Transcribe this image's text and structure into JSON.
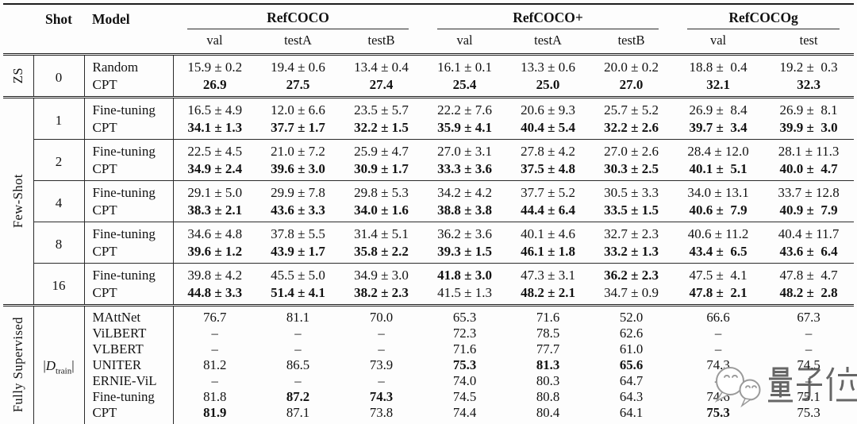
{
  "table": {
    "header": {
      "shot": "Shot",
      "model": "Model"
    },
    "col_groups": [
      {
        "label": "RefCOCO",
        "cols": [
          "val",
          "testA",
          "testB"
        ]
      },
      {
        "label": "RefCOCO+",
        "cols": [
          "val",
          "testA",
          "testB"
        ]
      },
      {
        "label": "RefCOCOg",
        "cols": [
          "val",
          "test"
        ]
      }
    ],
    "sections": [
      {
        "id": "zero-shot",
        "group_label": "ZS",
        "blocks": [
          {
            "shot": {
              "pre": "0"
            },
            "rows": [
              {
                "model": "Random",
                "values": [
                  [
                    "15.9 ± 0.2",
                    0
                  ],
                  [
                    "19.4 ± 0.6",
                    0
                  ],
                  [
                    "13.4 ± 0.4",
                    0
                  ],
                  [
                    "16.1 ± 0.1",
                    0
                  ],
                  [
                    "13.3 ± 0.6",
                    0
                  ],
                  [
                    "20.0 ± 0.2",
                    0
                  ],
                  [
                    "18.8 ±  0.4",
                    0
                  ],
                  [
                    "19.2 ±  0.3",
                    0
                  ]
                ]
              },
              {
                "model": "CPT",
                "values": [
                  [
                    "26.9",
                    1
                  ],
                  [
                    "27.5",
                    1
                  ],
                  [
                    "27.4",
                    1
                  ],
                  [
                    "25.4",
                    1
                  ],
                  [
                    "25.0",
                    1
                  ],
                  [
                    "27.0",
                    1
                  ],
                  [
                    "32.1",
                    1
                  ],
                  [
                    "32.3",
                    1
                  ]
                ]
              }
            ]
          }
        ]
      },
      {
        "id": "few-shot",
        "group_label": "Few-Shot",
        "blocks": [
          {
            "shot": {
              "pre": "1"
            },
            "rows": [
              {
                "model": "Fine-tuning",
                "values": [
                  [
                    "16.5 ± 4.9",
                    0
                  ],
                  [
                    "12.0 ± 6.6",
                    0
                  ],
                  [
                    "23.5 ± 5.7",
                    0
                  ],
                  [
                    "22.2 ± 7.6",
                    0
                  ],
                  [
                    "20.6 ± 9.3",
                    0
                  ],
                  [
                    "25.7 ± 5.2",
                    0
                  ],
                  [
                    "26.9 ±  8.4",
                    0
                  ],
                  [
                    "26.9 ±  8.1",
                    0
                  ]
                ]
              },
              {
                "model": "CPT",
                "values": [
                  [
                    "34.1 ± 1.3",
                    1
                  ],
                  [
                    "37.7 ± 1.7",
                    1
                  ],
                  [
                    "32.2 ± 1.5",
                    1
                  ],
                  [
                    "35.9 ± 4.1",
                    1
                  ],
                  [
                    "40.4 ± 5.4",
                    1
                  ],
                  [
                    "32.2 ± 2.6",
                    1
                  ],
                  [
                    "39.7 ±  3.4",
                    1
                  ],
                  [
                    "39.9 ±  3.0",
                    1
                  ]
                ]
              }
            ]
          },
          {
            "shot": {
              "pre": "2"
            },
            "rows": [
              {
                "model": "Fine-tuning",
                "values": [
                  [
                    "22.5 ± 4.5",
                    0
                  ],
                  [
                    "21.0 ± 7.2",
                    0
                  ],
                  [
                    "25.9 ± 4.7",
                    0
                  ],
                  [
                    "27.0 ± 3.1",
                    0
                  ],
                  [
                    "27.8 ± 4.2",
                    0
                  ],
                  [
                    "27.0 ± 2.6",
                    0
                  ],
                  [
                    "28.4 ± 12.0",
                    0
                  ],
                  [
                    "28.1 ± 11.3",
                    0
                  ]
                ]
              },
              {
                "model": "CPT",
                "values": [
                  [
                    "34.9 ± 2.4",
                    1
                  ],
                  [
                    "39.6 ± 3.0",
                    1
                  ],
                  [
                    "30.9 ± 1.7",
                    1
                  ],
                  [
                    "33.3 ± 3.6",
                    1
                  ],
                  [
                    "37.5 ± 4.8",
                    1
                  ],
                  [
                    "30.3 ± 2.5",
                    1
                  ],
                  [
                    "40.1 ±  5.1",
                    1
                  ],
                  [
                    "40.0 ±  4.7",
                    1
                  ]
                ]
              }
            ]
          },
          {
            "shot": {
              "pre": "4"
            },
            "rows": [
              {
                "model": "Fine-tuning",
                "values": [
                  [
                    "29.1 ± 5.0",
                    0
                  ],
                  [
                    "29.9 ± 7.8",
                    0
                  ],
                  [
                    "29.8 ± 5.3",
                    0
                  ],
                  [
                    "34.2 ± 4.2",
                    0
                  ],
                  [
                    "37.7 ± 5.2",
                    0
                  ],
                  [
                    "30.5 ± 3.3",
                    0
                  ],
                  [
                    "34.0 ± 13.1",
                    0
                  ],
                  [
                    "33.7 ± 12.8",
                    0
                  ]
                ]
              },
              {
                "model": "CPT",
                "values": [
                  [
                    "38.3 ± 2.1",
                    1
                  ],
                  [
                    "43.6 ± 3.3",
                    1
                  ],
                  [
                    "34.0 ± 1.6",
                    1
                  ],
                  [
                    "38.8 ± 3.8",
                    1
                  ],
                  [
                    "44.4 ± 6.4",
                    1
                  ],
                  [
                    "33.5 ± 1.5",
                    1
                  ],
                  [
                    "40.6 ±  7.9",
                    1
                  ],
                  [
                    "40.9 ±  7.9",
                    1
                  ]
                ]
              }
            ]
          },
          {
            "shot": {
              "pre": "8"
            },
            "rows": [
              {
                "model": "Fine-tuning",
                "values": [
                  [
                    "34.6 ± 4.8",
                    0
                  ],
                  [
                    "37.8 ± 5.5",
                    0
                  ],
                  [
                    "31.4 ± 5.1",
                    0
                  ],
                  [
                    "36.2 ± 3.6",
                    0
                  ],
                  [
                    "40.1 ± 4.6",
                    0
                  ],
                  [
                    "32.7 ± 2.3",
                    0
                  ],
                  [
                    "40.6 ± 11.2",
                    0
                  ],
                  [
                    "40.4 ± 11.7",
                    0
                  ]
                ]
              },
              {
                "model": "CPT",
                "values": [
                  [
                    "39.6 ± 1.2",
                    1
                  ],
                  [
                    "43.9 ± 1.7",
                    1
                  ],
                  [
                    "35.8 ± 2.2",
                    1
                  ],
                  [
                    "39.3 ± 1.5",
                    1
                  ],
                  [
                    "46.1 ± 1.8",
                    1
                  ],
                  [
                    "33.2 ± 1.3",
                    1
                  ],
                  [
                    "43.4 ±  6.5",
                    1
                  ],
                  [
                    "43.6 ±  6.4",
                    1
                  ]
                ]
              }
            ]
          },
          {
            "shot": {
              "pre": "16"
            },
            "rows": [
              {
                "model": "Fine-tuning",
                "values": [
                  [
                    "39.8 ± 4.2",
                    0
                  ],
                  [
                    "45.5 ± 5.0",
                    0
                  ],
                  [
                    "34.9 ± 3.0",
                    0
                  ],
                  [
                    "41.8 ± 3.0",
                    1
                  ],
                  [
                    "47.3 ± 3.1",
                    0
                  ],
                  [
                    "36.2 ± 2.3",
                    1
                  ],
                  [
                    "47.5 ±  4.1",
                    0
                  ],
                  [
                    "47.8 ±  4.7",
                    0
                  ]
                ]
              },
              {
                "model": "CPT",
                "values": [
                  [
                    "44.8 ± 3.3",
                    1
                  ],
                  [
                    "51.4 ± 4.1",
                    1
                  ],
                  [
                    "38.2 ± 2.3",
                    1
                  ],
                  [
                    "41.5 ± 1.3",
                    0
                  ],
                  [
                    "48.2 ± 2.1",
                    1
                  ],
                  [
                    "34.7 ± 0.9",
                    0
                  ],
                  [
                    "47.8 ±  2.1",
                    1
                  ],
                  [
                    "48.2 ±  2.8",
                    1
                  ]
                ]
              }
            ]
          }
        ]
      },
      {
        "id": "fully-supervised",
        "group_label": "Fully Supervised",
        "blocks": [
          {
            "shot": {
              "pre": "|",
              "d": "D",
              "sub": "train",
              "post": "|"
            },
            "rows": [
              {
                "model": "MAttNet",
                "values": [
                  [
                    "76.7",
                    0
                  ],
                  [
                    "81.1",
                    0
                  ],
                  [
                    "70.0",
                    0
                  ],
                  [
                    "65.3",
                    0
                  ],
                  [
                    "71.6",
                    0
                  ],
                  [
                    "52.0",
                    0
                  ],
                  [
                    "66.6",
                    0
                  ],
                  [
                    "67.3",
                    0
                  ]
                ]
              },
              {
                "model": "ViLBERT",
                "values": [
                  [
                    "–",
                    0
                  ],
                  [
                    "–",
                    0
                  ],
                  [
                    "–",
                    0
                  ],
                  [
                    "72.3",
                    0
                  ],
                  [
                    "78.5",
                    0
                  ],
                  [
                    "62.6",
                    0
                  ],
                  [
                    "–",
                    0
                  ],
                  [
                    "–",
                    0
                  ]
                ]
              },
              {
                "model": "VLBERT",
                "values": [
                  [
                    "–",
                    0
                  ],
                  [
                    "–",
                    0
                  ],
                  [
                    "–",
                    0
                  ],
                  [
                    "71.6",
                    0
                  ],
                  [
                    "77.7",
                    0
                  ],
                  [
                    "61.0",
                    0
                  ],
                  [
                    "–",
                    0
                  ],
                  [
                    "–",
                    0
                  ]
                ]
              },
              {
                "model": "UNITER",
                "values": [
                  [
                    "81.2",
                    0
                  ],
                  [
                    "86.5",
                    0
                  ],
                  [
                    "73.9",
                    0
                  ],
                  [
                    "75.3",
                    1
                  ],
                  [
                    "81.3",
                    1
                  ],
                  [
                    "65.6",
                    1
                  ],
                  [
                    "74.3",
                    0
                  ],
                  [
                    "74.5",
                    0
                  ]
                ]
              },
              {
                "model": "ERNIE-ViL",
                "values": [
                  [
                    "–",
                    0
                  ],
                  [
                    "–",
                    0
                  ],
                  [
                    "–",
                    0
                  ],
                  [
                    "74.0",
                    0
                  ],
                  [
                    "80.3",
                    0
                  ],
                  [
                    "64.7",
                    0
                  ],
                  [
                    "–",
                    0
                  ],
                  [
                    "–",
                    0
                  ]
                ]
              },
              {
                "model": "Fine-tuning",
                "values": [
                  [
                    "81.8",
                    0
                  ],
                  [
                    "87.2",
                    1
                  ],
                  [
                    "74.3",
                    1
                  ],
                  [
                    "74.5",
                    0
                  ],
                  [
                    "80.8",
                    0
                  ],
                  [
                    "64.3",
                    0
                  ],
                  [
                    "74.6",
                    0
                  ],
                  [
                    "75.1",
                    0
                  ]
                ]
              },
              {
                "model": "CPT",
                "values": [
                  [
                    "81.9",
                    1
                  ],
                  [
                    "87.1",
                    0
                  ],
                  [
                    "73.8",
                    0
                  ],
                  [
                    "74.4",
                    0
                  ],
                  [
                    "80.4",
                    0
                  ],
                  [
                    "64.1",
                    0
                  ],
                  [
                    "75.3",
                    1
                  ],
                  [
                    "75.3",
                    0
                  ]
                ]
              }
            ]
          }
        ]
      }
    ]
  },
  "watermark": {
    "text": "量子位"
  }
}
